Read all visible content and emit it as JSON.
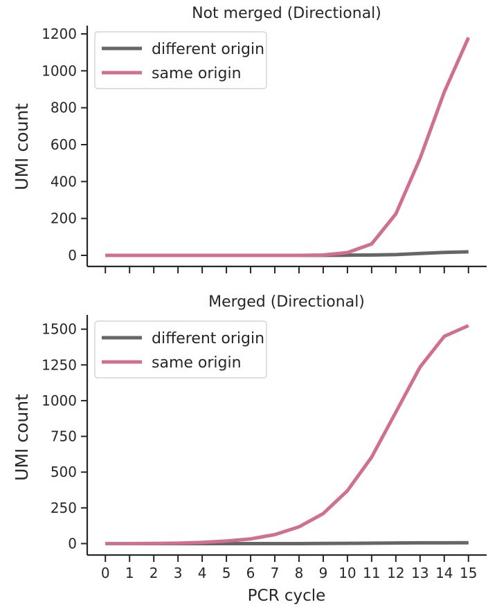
{
  "chart_data": [
    {
      "type": "line",
      "title": "Not merged (Directional)",
      "xlabel": "",
      "ylabel": "UMI count",
      "x": [
        0,
        1,
        2,
        3,
        4,
        5,
        6,
        7,
        8,
        9,
        10,
        11,
        12,
        13,
        14,
        15
      ],
      "xlim": [
        -0.75,
        15.75
      ],
      "ylim": [
        -60,
        1245
      ],
      "yticks": [
        0,
        200,
        400,
        600,
        800,
        1000,
        1200
      ],
      "show_xtick_labels": false,
      "legend": "top-left",
      "series": [
        {
          "name": "different origin",
          "color": "#666666",
          "values": [
            0,
            0,
            0,
            0,
            0,
            0,
            0,
            0,
            0,
            0,
            1,
            2,
            4,
            10,
            16,
            19
          ]
        },
        {
          "name": "same origin",
          "color": "#d07091",
          "values": [
            0,
            0,
            0,
            0,
            0,
            0,
            0,
            0,
            0,
            2,
            15,
            62,
            225,
            525,
            885,
            1180
          ]
        }
      ]
    },
    {
      "type": "line",
      "title": "Merged (Directional)",
      "xlabel": "PCR cycle",
      "ylabel": "UMI count",
      "x": [
        0,
        1,
        2,
        3,
        4,
        5,
        6,
        7,
        8,
        9,
        10,
        11,
        12,
        13,
        14,
        15
      ],
      "xlim": [
        -0.75,
        15.75
      ],
      "ylim": [
        -80,
        1600
      ],
      "yticks": [
        0,
        250,
        500,
        750,
        1000,
        1250,
        1500
      ],
      "show_xtick_labels": true,
      "legend": "top-left",
      "series": [
        {
          "name": "different origin",
          "color": "#666666",
          "values": [
            0,
            0,
            0,
            0,
            0,
            0,
            0,
            0,
            0,
            1,
            2,
            3,
            4,
            5,
            5,
            6
          ]
        },
        {
          "name": "same origin",
          "color": "#d07091",
          "values": [
            0,
            0,
            1,
            3,
            8,
            18,
            33,
            63,
            117,
            210,
            370,
            605,
            920,
            1235,
            1450,
            1525
          ]
        }
      ]
    }
  ]
}
